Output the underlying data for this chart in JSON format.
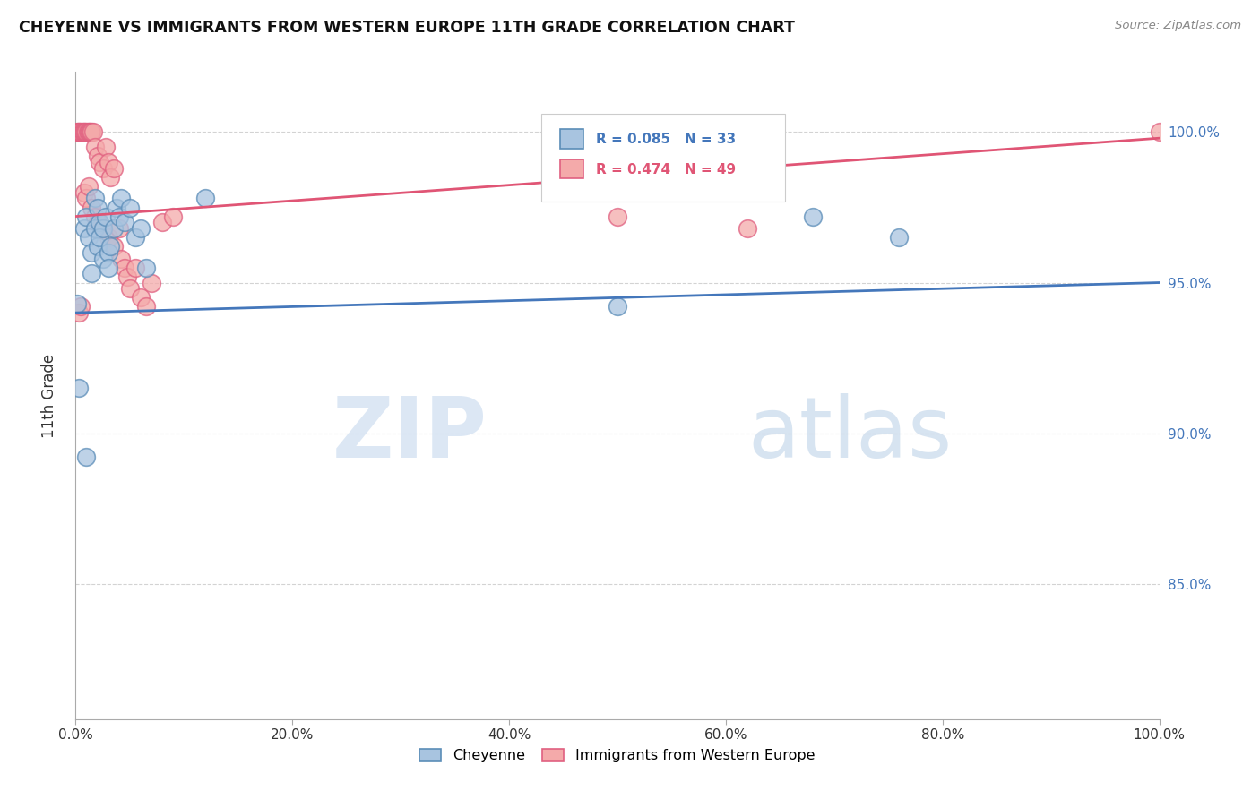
{
  "title": "CHEYENNE VS IMMIGRANTS FROM WESTERN EUROPE 11TH GRADE CORRELATION CHART",
  "source": "Source: ZipAtlas.com",
  "ylabel": "11th Grade",
  "legend_cheyenne": "Cheyenne",
  "legend_immigrants": "Immigrants from Western Europe",
  "r_cheyenne": 0.085,
  "n_cheyenne": 33,
  "r_immigrants": 0.474,
  "n_immigrants": 49,
  "cheyenne_color": "#A8C4E0",
  "immigrants_color": "#F4AAAA",
  "cheyenne_edge_color": "#5B8DB8",
  "immigrants_edge_color": "#E06080",
  "cheyenne_line_color": "#4477BB",
  "immigrants_line_color": "#E05575",
  "background_color": "#FFFFFF",
  "watermark_zip": "ZIP",
  "watermark_atlas": "atlas",
  "cheyenne_points": [
    [
      0.001,
      94.3
    ],
    [
      0.008,
      96.8
    ],
    [
      0.01,
      97.2
    ],
    [
      0.012,
      96.5
    ],
    [
      0.015,
      96.0
    ],
    [
      0.015,
      95.3
    ],
    [
      0.018,
      97.8
    ],
    [
      0.018,
      96.8
    ],
    [
      0.02,
      97.5
    ],
    [
      0.02,
      96.2
    ],
    [
      0.022,
      97.0
    ],
    [
      0.022,
      96.5
    ],
    [
      0.025,
      96.8
    ],
    [
      0.025,
      95.8
    ],
    [
      0.028,
      97.2
    ],
    [
      0.03,
      96.0
    ],
    [
      0.03,
      95.5
    ],
    [
      0.032,
      96.2
    ],
    [
      0.035,
      96.8
    ],
    [
      0.038,
      97.5
    ],
    [
      0.04,
      97.2
    ],
    [
      0.042,
      97.8
    ],
    [
      0.045,
      97.0
    ],
    [
      0.05,
      97.5
    ],
    [
      0.055,
      96.5
    ],
    [
      0.06,
      96.8
    ],
    [
      0.065,
      95.5
    ],
    [
      0.12,
      97.8
    ],
    [
      0.5,
      94.2
    ],
    [
      0.68,
      97.2
    ],
    [
      0.76,
      96.5
    ],
    [
      0.003,
      91.5
    ],
    [
      0.01,
      89.2
    ]
  ],
  "immigrants_points": [
    [
      0.001,
      100.0
    ],
    [
      0.002,
      100.0
    ],
    [
      0.003,
      100.0
    ],
    [
      0.004,
      100.0
    ],
    [
      0.005,
      100.0
    ],
    [
      0.006,
      100.0
    ],
    [
      0.007,
      100.0
    ],
    [
      0.008,
      100.0
    ],
    [
      0.009,
      100.0
    ],
    [
      0.01,
      100.0
    ],
    [
      0.011,
      100.0
    ],
    [
      0.012,
      100.0
    ],
    [
      0.013,
      100.0
    ],
    [
      0.014,
      100.0
    ],
    [
      0.015,
      100.0
    ],
    [
      0.016,
      100.0
    ],
    [
      0.018,
      99.5
    ],
    [
      0.02,
      99.2
    ],
    [
      0.022,
      99.0
    ],
    [
      0.025,
      98.8
    ],
    [
      0.028,
      99.5
    ],
    [
      0.03,
      99.0
    ],
    [
      0.032,
      98.5
    ],
    [
      0.035,
      98.8
    ],
    [
      0.008,
      98.0
    ],
    [
      0.01,
      97.8
    ],
    [
      0.012,
      98.2
    ],
    [
      0.015,
      97.5
    ],
    [
      0.018,
      97.2
    ],
    [
      0.02,
      97.0
    ],
    [
      0.025,
      96.8
    ],
    [
      0.03,
      96.5
    ],
    [
      0.035,
      96.2
    ],
    [
      0.04,
      96.8
    ],
    [
      0.042,
      95.8
    ],
    [
      0.045,
      95.5
    ],
    [
      0.048,
      95.2
    ],
    [
      0.05,
      94.8
    ],
    [
      0.055,
      95.5
    ],
    [
      0.06,
      94.5
    ],
    [
      0.065,
      94.2
    ],
    [
      0.07,
      95.0
    ],
    [
      0.08,
      97.0
    ],
    [
      0.09,
      97.2
    ],
    [
      0.5,
      97.2
    ],
    [
      0.62,
      96.8
    ],
    [
      0.003,
      94.0
    ],
    [
      0.005,
      94.2
    ],
    [
      1.0,
      100.0
    ]
  ],
  "xlim": [
    0.0,
    1.0
  ],
  "ylim": [
    80.5,
    102.0
  ],
  "y_ticks": [
    85.0,
    90.0,
    95.0,
    100.0
  ],
  "y_tick_labels": [
    "85.0%",
    "90.0%",
    "95.0%",
    "100.0%"
  ],
  "x_ticks": [
    0.0,
    0.2,
    0.4,
    0.6,
    0.8,
    1.0
  ],
  "x_tick_labels": [
    "0.0%",
    "20.0%",
    "40.0%",
    "60.0%",
    "80.0%",
    "100.0%"
  ]
}
